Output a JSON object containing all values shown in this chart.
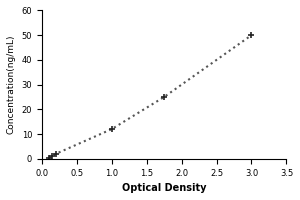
{
  "x_data": [
    0.1,
    0.15,
    0.2,
    1.0,
    1.75,
    3.0
  ],
  "y_data": [
    0.5,
    1.0,
    2.0,
    12.0,
    25.0,
    50.0
  ],
  "xlabel": "Optical Density",
  "ylabel": "Concentration(ng/mL)",
  "xlim": [
    0,
    3.5
  ],
  "ylim": [
    0,
    60
  ],
  "xticks": [
    0,
    0.5,
    1,
    1.5,
    2,
    2.5,
    3,
    3.5
  ],
  "yticks": [
    0,
    10,
    20,
    30,
    40,
    50,
    60
  ],
  "line_color": "#555555",
  "marker_color": "#222222",
  "line_style": "dotted",
  "marker_style": "+",
  "marker_size": 5,
  "marker_linewidth": 1.2,
  "line_width": 1.5,
  "background_color": "#ffffff",
  "label_fontsize": 7,
  "tick_fontsize": 6,
  "ylabel_fontsize": 6.5
}
